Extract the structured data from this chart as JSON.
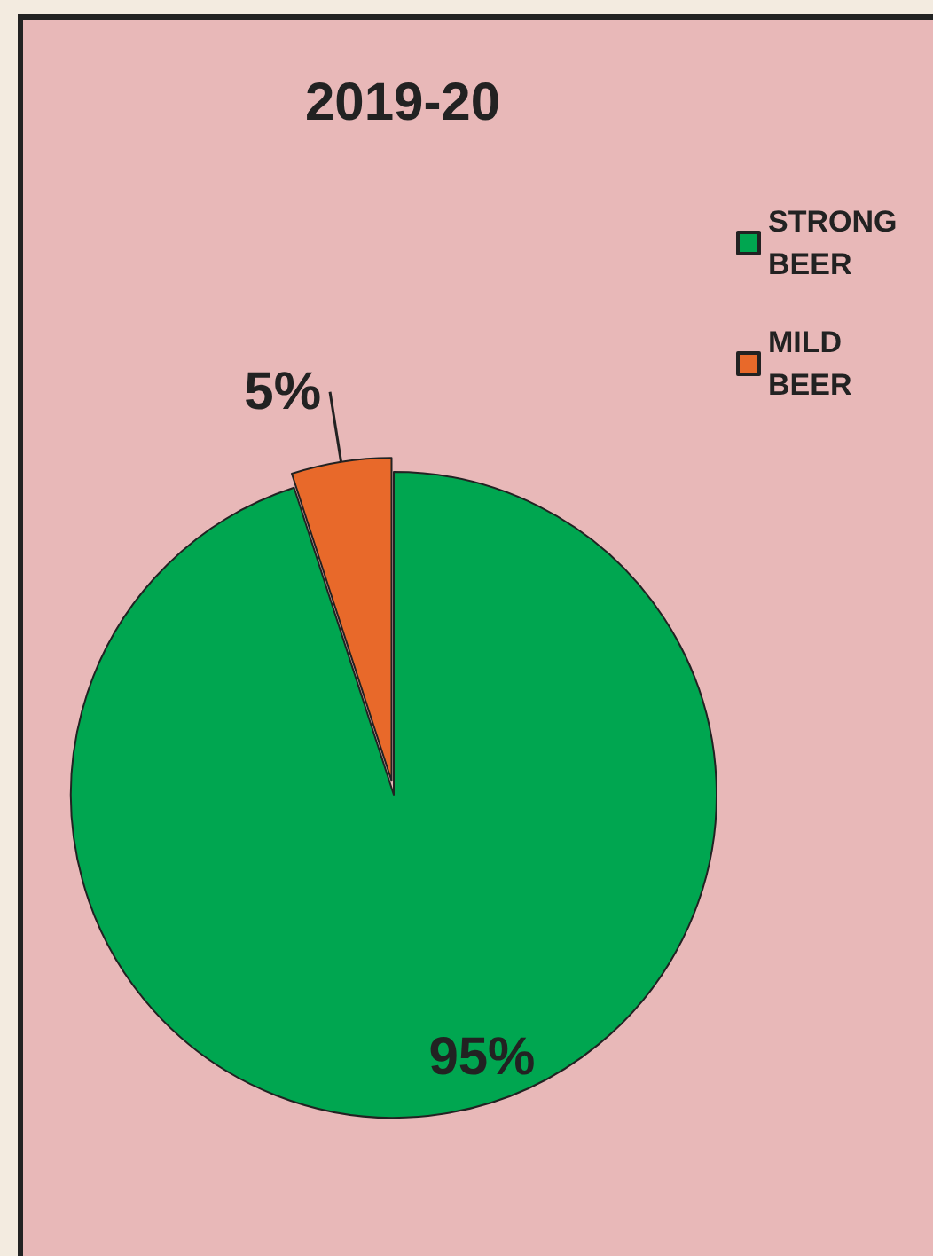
{
  "chart_data": {
    "type": "pie",
    "title": "2019-20",
    "categories": [
      "STRONG BEER",
      "MILD BEER"
    ],
    "values": [
      95,
      5
    ],
    "value_labels": [
      "95%",
      "5%"
    ],
    "colors": [
      "#00a650",
      "#e8692a"
    ],
    "legend": "top right"
  }
}
